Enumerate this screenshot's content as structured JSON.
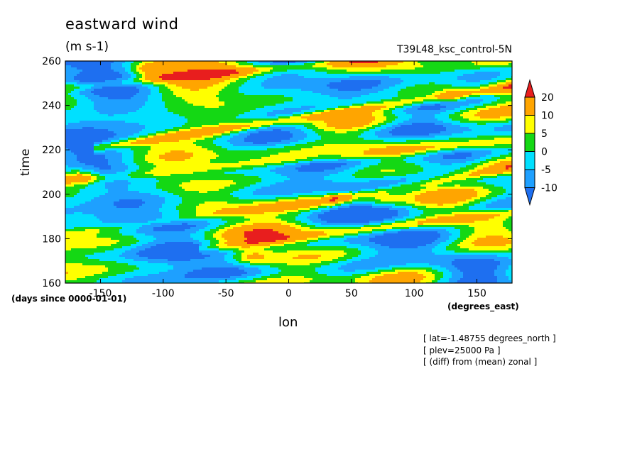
{
  "chart_data": {
    "type": "heatmap",
    "title": "eastward wind",
    "units": "(m s-1)",
    "run_name": "T39L48_ksc_control-5N",
    "xlabel": "lon",
    "ylabel": "time",
    "x_units": "(degrees_east)",
    "y_units": "(days since 0000-01-01)",
    "xlim": [
      -178,
      178
    ],
    "ylim": [
      160,
      260
    ],
    "x_ticks": [
      -150,
      -100,
      -50,
      0,
      50,
      100,
      150
    ],
    "y_ticks": [
      160,
      180,
      200,
      220,
      240,
      260
    ],
    "colorbar": {
      "levels": [
        -10,
        -5,
        0,
        5,
        10,
        20
      ],
      "colors": [
        "#1e6ff0",
        "#1ea0ff",
        "#00e0ff",
        "#14d814",
        "#ffff00",
        "#ffa500",
        "#e81e1e"
      ]
    },
    "notes": [
      "[ lat=-1.48755 degrees_north ]",
      "[ plev=25000 Pa ]",
      "[ (diff) from (mean) zonal ]"
    ],
    "features": [
      {
        "type": "eastward_streak",
        "lon_start": -140,
        "lon_end": 175,
        "t_start": 222,
        "t_end": 248,
        "value": 15
      },
      {
        "type": "eastward_streak",
        "lon_start": -178,
        "lon_end": 110,
        "t_start": 248,
        "t_end": 263,
        "value": 14
      },
      {
        "type": "eastward_streak",
        "lon_start": -178,
        "lon_end": 178,
        "t_start": 206,
        "t_end": 224,
        "value": 9
      },
      {
        "type": "eastward_streak",
        "lon_start": -60,
        "lon_end": 178,
        "t_start": 176,
        "t_end": 192,
        "value": 12
      },
      {
        "type": "eastward_streak",
        "lon_start": -178,
        "lon_end": 40,
        "t_start": 182,
        "t_end": 198,
        "value": 8
      },
      {
        "type": "eastward_streak",
        "lon_start": 40,
        "lon_end": 178,
        "t_start": 198,
        "t_end": 212,
        "value": 11
      },
      {
        "type": "blob",
        "lon": 130,
        "t": 244,
        "value": 12
      },
      {
        "type": "blob",
        "lon": -165,
        "t": 208,
        "value": 16
      },
      {
        "type": "blob",
        "lon": -30,
        "t": 172,
        "value": 11
      },
      {
        "type": "blob",
        "lon": 75,
        "t": 197,
        "value": 10
      },
      {
        "type": "blob",
        "lon": -110,
        "t": 256,
        "value": 14
      }
    ]
  }
}
